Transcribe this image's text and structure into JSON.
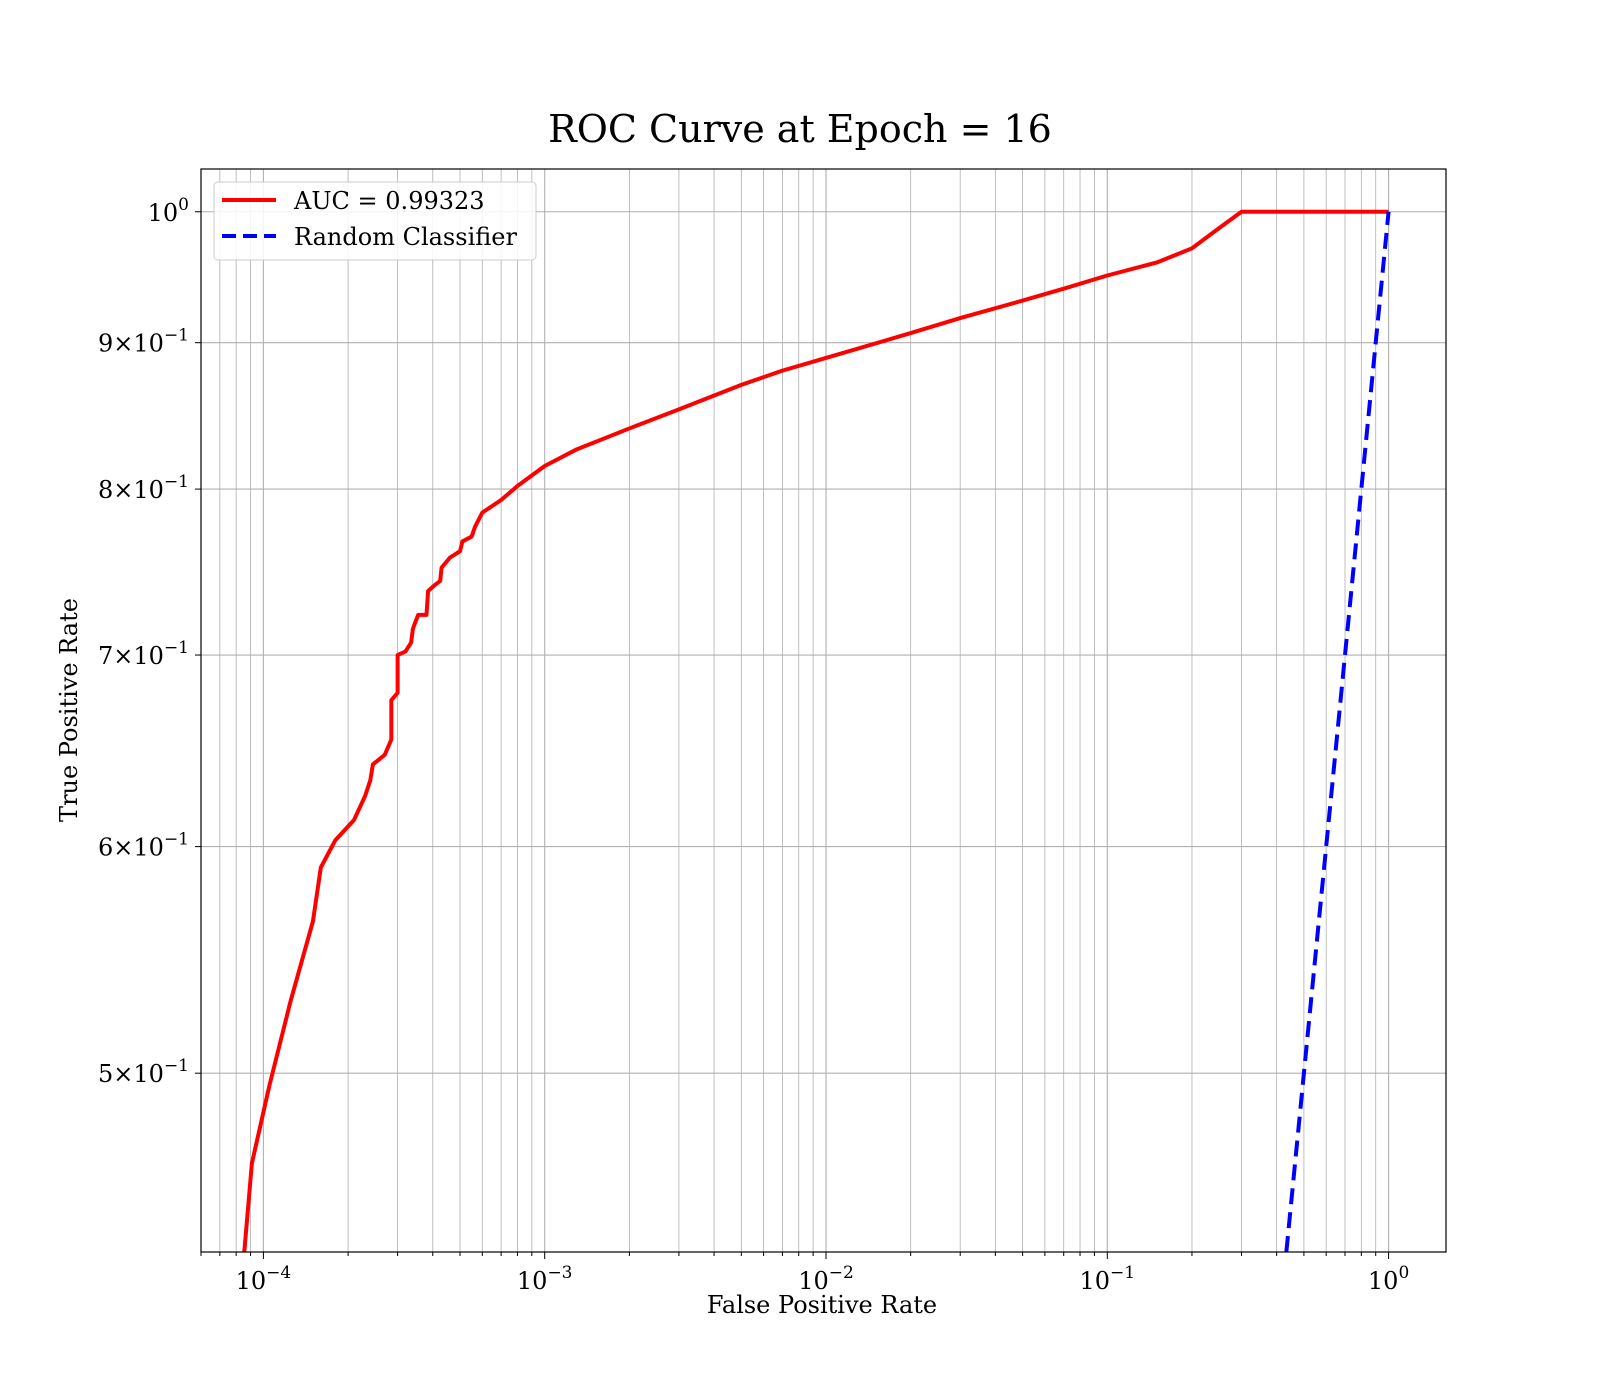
{
  "chart_data": {
    "type": "line",
    "title": "ROC Curve at Epoch = 16",
    "xlabel": "False Positive Rate",
    "ylabel": "True Positive Rate",
    "xscale": "log",
    "yscale": "log",
    "xlim": [
      6e-05,
      1.6
    ],
    "ylim": [
      0.433,
      1.035
    ],
    "grid": "on (major and minor)",
    "legend_position": "top-left",
    "x_ticks": [
      {
        "value": 0.0001,
        "base": "10",
        "exp": "−4"
      },
      {
        "value": 0.001,
        "base": "10",
        "exp": "−3"
      },
      {
        "value": 0.01,
        "base": "10",
        "exp": "−2"
      },
      {
        "value": 0.1,
        "base": "10",
        "exp": "−1"
      },
      {
        "value": 1,
        "base": "10",
        "exp": "0"
      }
    ],
    "y_ticks": [
      {
        "value": 1.0,
        "base": "10",
        "exp": "0"
      },
      {
        "value": 0.9,
        "base": "9×10",
        "exp": "−1"
      },
      {
        "value": 0.8,
        "base": "8×10",
        "exp": "−1"
      },
      {
        "value": 0.7,
        "base": "7×10",
        "exp": "−1"
      },
      {
        "value": 0.6,
        "base": "6×10",
        "exp": "−1"
      },
      {
        "value": 0.5,
        "base": "5×10",
        "exp": "−1"
      }
    ],
    "series": [
      {
        "name": "AUC = 0.99323",
        "color": "#ff0000",
        "style": "solid",
        "points": [
          [
            8.55e-05,
            0.433
          ],
          [
            9.1e-05,
            0.465
          ],
          [
            0.000105,
            0.495
          ],
          [
            0.000125,
            0.53
          ],
          [
            0.00015,
            0.565
          ],
          [
            0.00016,
            0.59
          ],
          [
            0.00018,
            0.603
          ],
          [
            0.00021,
            0.613
          ],
          [
            0.00023,
            0.625
          ],
          [
            0.00024,
            0.633
          ],
          [
            0.000245,
            0.641
          ],
          [
            0.00027,
            0.646
          ],
          [
            0.000285,
            0.654
          ],
          [
            0.000285,
            0.675
          ],
          [
            0.0003,
            0.679
          ],
          [
            0.0003,
            0.7
          ],
          [
            0.00032,
            0.702
          ],
          [
            0.000335,
            0.707
          ],
          [
            0.00034,
            0.715
          ],
          [
            0.000355,
            0.723
          ],
          [
            0.00038,
            0.723
          ],
          [
            0.000385,
            0.737
          ],
          [
            0.00041,
            0.741
          ],
          [
            0.000425,
            0.743
          ],
          [
            0.00043,
            0.751
          ],
          [
            0.00046,
            0.757
          ],
          [
            0.0005,
            0.761
          ],
          [
            0.00051,
            0.767
          ],
          [
            0.00055,
            0.77
          ],
          [
            0.000565,
            0.776
          ],
          [
            0.0006,
            0.785
          ],
          [
            0.0007,
            0.793
          ],
          [
            0.0008,
            0.802
          ],
          [
            0.001,
            0.815
          ],
          [
            0.0013,
            0.826
          ],
          [
            0.002,
            0.84
          ],
          [
            0.003,
            0.853
          ],
          [
            0.005,
            0.87
          ],
          [
            0.007,
            0.88
          ],
          [
            0.01,
            0.889
          ],
          [
            0.02,
            0.907
          ],
          [
            0.03,
            0.918
          ],
          [
            0.05,
            0.931
          ],
          [
            0.07,
            0.94
          ],
          [
            0.1,
            0.95
          ],
          [
            0.15,
            0.96
          ],
          [
            0.2,
            0.971
          ],
          [
            0.25,
            0.987
          ],
          [
            0.3,
            1.0
          ],
          [
            1.0,
            1.0
          ]
        ]
      },
      {
        "name": "Random Classifier",
        "color": "#0000ff",
        "style": "dashed",
        "points": [
          [
            0.433,
            0.433
          ],
          [
            1.0,
            1.0
          ]
        ]
      }
    ]
  }
}
